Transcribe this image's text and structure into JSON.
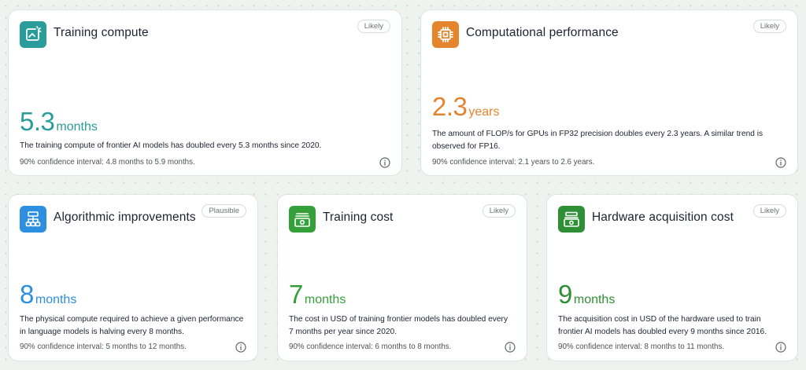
{
  "colors": {
    "teal": "#2a9d9a",
    "orange": "#e4852e",
    "blue": "#2d8fe0",
    "green": "#35a03a",
    "green_dark": "#2f8f35"
  },
  "cards": [
    {
      "id": "training-compute",
      "title": "Training compute",
      "badge": "Likely",
      "value": "5.3",
      "unit": "months",
      "description": "The training compute of frontier AI models has doubled every 5.3 months since 2020.",
      "confidence": "90% confidence interval: 4.8 months to 5.9 months.",
      "icon": "trend-chart-icon",
      "accent": "teal"
    },
    {
      "id": "computational-performance",
      "title": "Computational performance",
      "badge": "Likely",
      "value": "2.3",
      "unit": "years",
      "description": "The amount of FLOP/s for GPUs in FP32 precision doubles every 2.3 years. A similar trend is observed for FP16.",
      "confidence": "90% confidence interval: 2.1 years to 2.6 years.",
      "icon": "chip-icon",
      "accent": "orange"
    },
    {
      "id": "algorithmic-improvements",
      "title": "Algorithmic improvements",
      "badge": "Plausible",
      "value": "8",
      "unit": "months",
      "description": "The physical compute required to achieve a given performance in language models is halving every 8 months.",
      "confidence": "90% confidence interval: 5 months to 12 months.",
      "icon": "hierarchy-icon",
      "accent": "blue"
    },
    {
      "id": "training-cost",
      "title": "Training cost",
      "badge": "Likely",
      "value": "7",
      "unit": "months",
      "description": "The cost in USD of training frontier models has doubled every 7 months per year since 2020.",
      "confidence": "90% confidence interval: 6 months to 8 months.",
      "icon": "money-icon",
      "accent": "green"
    },
    {
      "id": "hardware-acquisition-cost",
      "title": "Hardware acquisition cost",
      "badge": "Likely",
      "value": "9",
      "unit": "months",
      "description": "The acquisition cost in USD of the hardware used to train frontier AI models has doubled every 9 months since 2016.",
      "confidence": "90% confidence interval: 8 months to 11 months.",
      "icon": "money-stack-icon",
      "accent": "green"
    }
  ]
}
